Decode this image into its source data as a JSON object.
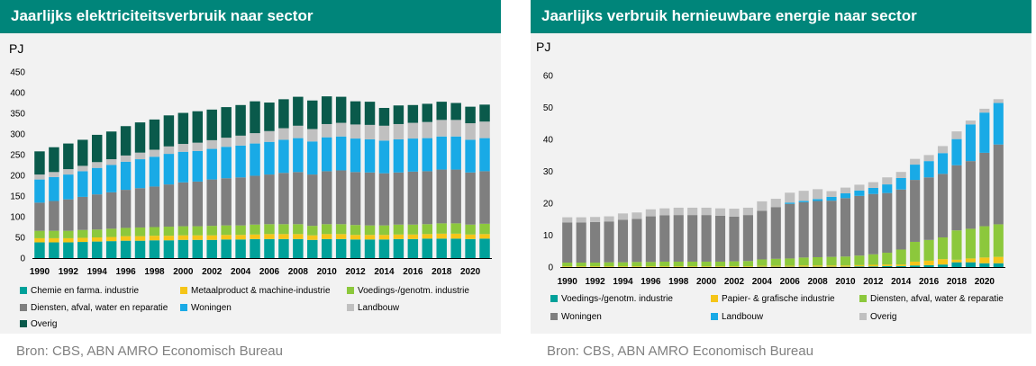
{
  "colors": {
    "header_bg": "#00857a",
    "chart_bg": "#f2f2f2",
    "source_text": "#808080",
    "chemie": "#00a19a",
    "metaal": "#f5c518",
    "voedings": "#8cc83c",
    "papier": "#f5c518",
    "diensten_left": "#7f7f7f",
    "diensten_right": "#8cc83c",
    "woningen_left": "#19aae6",
    "woningen_right": "#7f7f7f",
    "landbouw_left": "#c0c0c0",
    "landbouw_right": "#19aae6",
    "overig_left": "#0a5a4b",
    "overig_right": "#c0c0c0"
  },
  "left": {
    "title": "Jaarlijks elektriciteitsverbruik naar sector",
    "source": "Bron: CBS, ABN AMRO Economisch Bureau"
  },
  "right": {
    "title": "Jaarlijks verbruik hernieuwbare energie naar sector",
    "source": "Bron: CBS, ABN AMRO Economisch Bureau"
  },
  "chart_data": [
    {
      "type": "bar",
      "stacked": true,
      "title": "Jaarlijks elektriciteitsverbruik naar sector",
      "ylabel": "PJ",
      "ylim": [
        0,
        450
      ],
      "yticks": [
        0,
        50,
        100,
        150,
        200,
        250,
        300,
        350,
        400,
        450
      ],
      "grid": false,
      "years": [
        1990,
        1991,
        1992,
        1993,
        1994,
        1995,
        1996,
        1997,
        1998,
        1999,
        2000,
        2001,
        2002,
        2003,
        2004,
        2005,
        2006,
        2007,
        2008,
        2009,
        2010,
        2011,
        2012,
        2013,
        2014,
        2015,
        2016,
        2017,
        2018,
        2019,
        2020,
        2021
      ],
      "xticklabels": [
        "1990",
        "1992",
        "1994",
        "1996",
        "1998",
        "2000",
        "2002",
        "2004",
        "2006",
        "2008",
        "2010",
        "2012",
        "2014",
        "2016",
        "2018",
        "2020"
      ],
      "series": [
        {
          "name": "Chemie en farma. industrie",
          "color": "#00a19a",
          "values": [
            38,
            38,
            38,
            39,
            40,
            41,
            42,
            42,
            43,
            43,
            44,
            44,
            44,
            45,
            45,
            46,
            46,
            46,
            46,
            44,
            46,
            46,
            45,
            45,
            45,
            46,
            46,
            47,
            47,
            47,
            46,
            47
          ]
        },
        {
          "name": "Metaalproduct & machine-industrie",
          "color": "#f5c518",
          "values": [
            10,
            10,
            10,
            10,
            10,
            10,
            11,
            11,
            11,
            11,
            11,
            11,
            11,
            11,
            11,
            11,
            12,
            12,
            12,
            11,
            12,
            12,
            11,
            11,
            11,
            11,
            11,
            11,
            12,
            12,
            11,
            11
          ]
        },
        {
          "name": "Voedings-/genotm. industrie",
          "color": "#8cc83c",
          "values": [
            18,
            18,
            18,
            19,
            19,
            20,
            20,
            21,
            21,
            22,
            22,
            22,
            23,
            23,
            23,
            24,
            24,
            24,
            24,
            23,
            24,
            24,
            24,
            23,
            23,
            24,
            24,
            24,
            25,
            25,
            24,
            25
          ]
        },
        {
          "name": "Diensten, afval, water en reparatie",
          "color": "#7f7f7f",
          "values": [
            68,
            72,
            76,
            80,
            85,
            88,
            92,
            95,
            98,
            102,
            106,
            108,
            112,
            114,
            116,
            118,
            120,
            124,
            126,
            124,
            128,
            130,
            128,
            128,
            126,
            126,
            128,
            128,
            130,
            130,
            126,
            127
          ]
        },
        {
          "name": "Woningen",
          "color": "#19aae6",
          "values": [
            56,
            58,
            60,
            62,
            64,
            66,
            68,
            70,
            72,
            74,
            74,
            74,
            74,
            76,
            77,
            78,
            79,
            80,
            82,
            80,
            82,
            82,
            81,
            80,
            79,
            80,
            80,
            80,
            80,
            80,
            79,
            80
          ]
        },
        {
          "name": "Landbouw",
          "color": "#c0c0c0",
          "values": [
            12,
            12,
            13,
            13,
            14,
            14,
            15,
            16,
            17,
            18,
            19,
            20,
            21,
            22,
            24,
            25,
            26,
            28,
            30,
            30,
            32,
            33,
            34,
            35,
            36,
            37,
            38,
            39,
            40,
            40,
            40,
            40
          ]
        },
        {
          "name": "Overig",
          "color": "#0a5a4b",
          "values": [
            56,
            60,
            62,
            63,
            66,
            67,
            71,
            73,
            73,
            75,
            75,
            76,
            74,
            74,
            74,
            77,
            69,
            70,
            70,
            69,
            67,
            63,
            56,
            56,
            43,
            45,
            43,
            44,
            44,
            41,
            40,
            41
          ]
        }
      ]
    },
    {
      "type": "bar",
      "stacked": true,
      "title": "Jaarlijks verbruik hernieuwbare energie naar sector",
      "ylabel": "PJ",
      "ylim": [
        0,
        60
      ],
      "yticks": [
        0,
        10,
        20,
        30,
        40,
        50,
        60
      ],
      "grid": false,
      "years": [
        1990,
        1991,
        1992,
        1993,
        1994,
        1995,
        1996,
        1997,
        1998,
        1999,
        2000,
        2001,
        2002,
        2003,
        2004,
        2005,
        2006,
        2007,
        2008,
        2009,
        2010,
        2011,
        2012,
        2013,
        2014,
        2015,
        2016,
        2017,
        2018,
        2019,
        2020,
        2021
      ],
      "xticklabels": [
        "1990",
        "1992",
        "1994",
        "1996",
        "1998",
        "2000",
        "2002",
        "2004",
        "2006",
        "2008",
        "2010",
        "2012",
        "2014",
        "2016",
        "2018",
        "2020"
      ],
      "series": [
        {
          "name": "Voedings-/genotm. industrie",
          "color": "#00a19a",
          "values": [
            0,
            0,
            0,
            0,
            0,
            0,
            0,
            0,
            0,
            0,
            0,
            0,
            0,
            0,
            0.1,
            0.1,
            0.1,
            0.1,
            0.1,
            0.1,
            0.1,
            0.2,
            0.2,
            0.3,
            0.3,
            0.5,
            0.6,
            0.8,
            1.5,
            1.5,
            1.2,
            1.2
          ]
        },
        {
          "name": "Papier- & grafische industrie",
          "color": "#f5c518",
          "values": [
            0.2,
            0.2,
            0.2,
            0.2,
            0.2,
            0.2,
            0.2,
            0.2,
            0.2,
            0.2,
            0.2,
            0.2,
            0.2,
            0.2,
            0.3,
            0.3,
            0.3,
            0.4,
            0.4,
            0.4,
            0.4,
            0.4,
            0.5,
            0.5,
            0.5,
            1.2,
            1.4,
            1.7,
            0.8,
            1.2,
            1.8,
            2.0
          ]
        },
        {
          "name": "Diensten, afval, water & reparatie",
          "color": "#8cc83c",
          "values": [
            1.2,
            1.2,
            1.2,
            1.3,
            1.3,
            1.4,
            1.4,
            1.5,
            1.5,
            1.5,
            1.5,
            1.5,
            1.6,
            1.7,
            2.0,
            2.2,
            2.3,
            2.5,
            2.6,
            2.7,
            2.8,
            3.0,
            3.3,
            3.7,
            4.7,
            6.2,
            6.5,
            6.8,
            9.2,
            9.3,
            9.8,
            10.2
          ]
        },
        {
          "name": "Woningen",
          "color": "#7f7f7f",
          "values": [
            12.6,
            12.6,
            12.7,
            12.8,
            13.3,
            13.5,
            14.3,
            14.5,
            14.6,
            14.6,
            14.6,
            14.4,
            14.0,
            14.4,
            15.2,
            16.2,
            17.1,
            17.3,
            17.6,
            17.6,
            18.3,
            18.7,
            18.9,
            18.7,
            18.8,
            19.4,
            19.6,
            19.9,
            20.4,
            21.2,
            23.0,
            25.0
          ]
        },
        {
          "name": "Landbouw",
          "color": "#19aae6",
          "values": [
            0,
            0,
            0,
            0,
            0,
            0,
            0,
            0,
            0,
            0,
            0,
            0,
            0,
            0,
            0,
            0,
            0.4,
            0.4,
            0.6,
            1.2,
            1.5,
            1.7,
            1.9,
            2.7,
            3.6,
            4.8,
            5.1,
            6.5,
            8.2,
            11.5,
            12.6,
            13.0
          ]
        },
        {
          "name": "Overig",
          "color": "#c0c0c0",
          "values": [
            1.6,
            1.6,
            1.6,
            1.6,
            2.0,
            2.0,
            2.2,
            2.2,
            2.3,
            2.3,
            2.3,
            2.3,
            2.5,
            2.3,
            3.0,
            2.6,
            3.1,
            3.2,
            3.1,
            1.8,
            1.8,
            1.8,
            1.8,
            2.2,
            1.9,
            1.8,
            1.9,
            2.2,
            2.4,
            1.2,
            1.2,
            1.2
          ]
        }
      ]
    }
  ]
}
